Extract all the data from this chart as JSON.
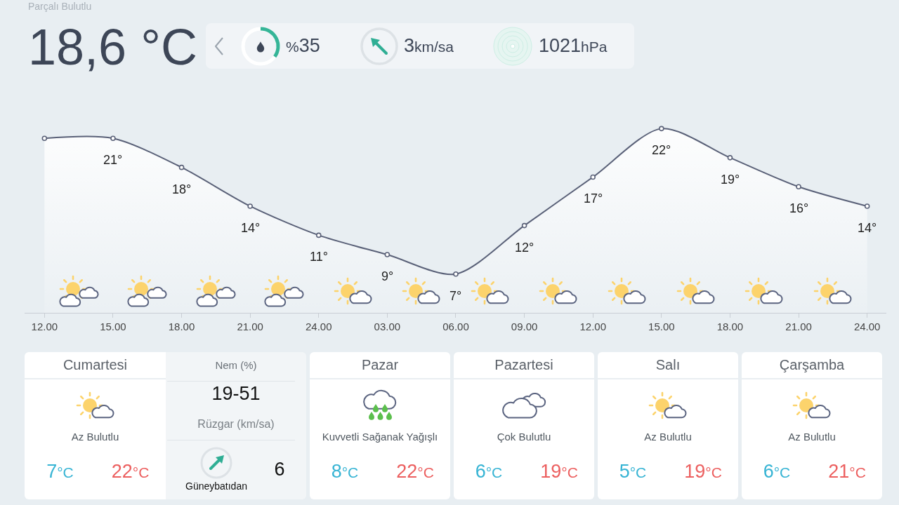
{
  "chart_data": [
    {
      "type": "other",
      "title": "Parçalı Bulutlu",
      "annotations": [
        "18,6 °C",
        "%35",
        "3km/sa",
        "1021hPa"
      ]
    },
    {
      "type": "area",
      "categories": [
        "12.00",
        "15.00",
        "18.00",
        "21.00",
        "24.00",
        "03.00",
        "06.00",
        "09.00",
        "12.00",
        "15.00",
        "18.00",
        "21.00",
        "24.00"
      ],
      "values": [
        21,
        21,
        18,
        14,
        11,
        9,
        7,
        12,
        17,
        22,
        19,
        16,
        14
      ],
      "value_labels": [
        null,
        "21°",
        "18°",
        "14°",
        "11°",
        "9°",
        "7°",
        "12°",
        "17°",
        "22°",
        "19°",
        "16°",
        "14°"
      ],
      "color": "#5a6178",
      "marker": "circle",
      "line_style": "solid",
      "grid": false,
      "tick_labels": "x"
    },
    {
      "type": "other",
      "title": "Cumartesi",
      "annotations": [
        "Az Bulutlu",
        "7°C",
        "22°C"
      ]
    },
    {
      "type": "other",
      "annotations": [
        "Nem (%)",
        "19-51",
        "Rüzgar (km/sa)",
        "6",
        "Güneybatıdan"
      ]
    },
    {
      "type": "other",
      "title": "Pazar",
      "annotations": [
        "Kuvvetli Sağanak Yağışlı",
        "8°C",
        "22°C"
      ]
    },
    {
      "type": "other",
      "title": "Pazartesi",
      "annotations": [
        "Çok Bulutlu",
        "6°C",
        "19°C"
      ]
    },
    {
      "type": "other",
      "title": "Salı",
      "annotations": [
        "Az Bulutlu",
        "5°C",
        "19°C"
      ]
    },
    {
      "type": "other",
      "title": "Çarşamba",
      "annotations": [
        "Az Bulutlu",
        "6°C",
        "21°C"
      ]
    }
  ]
}
